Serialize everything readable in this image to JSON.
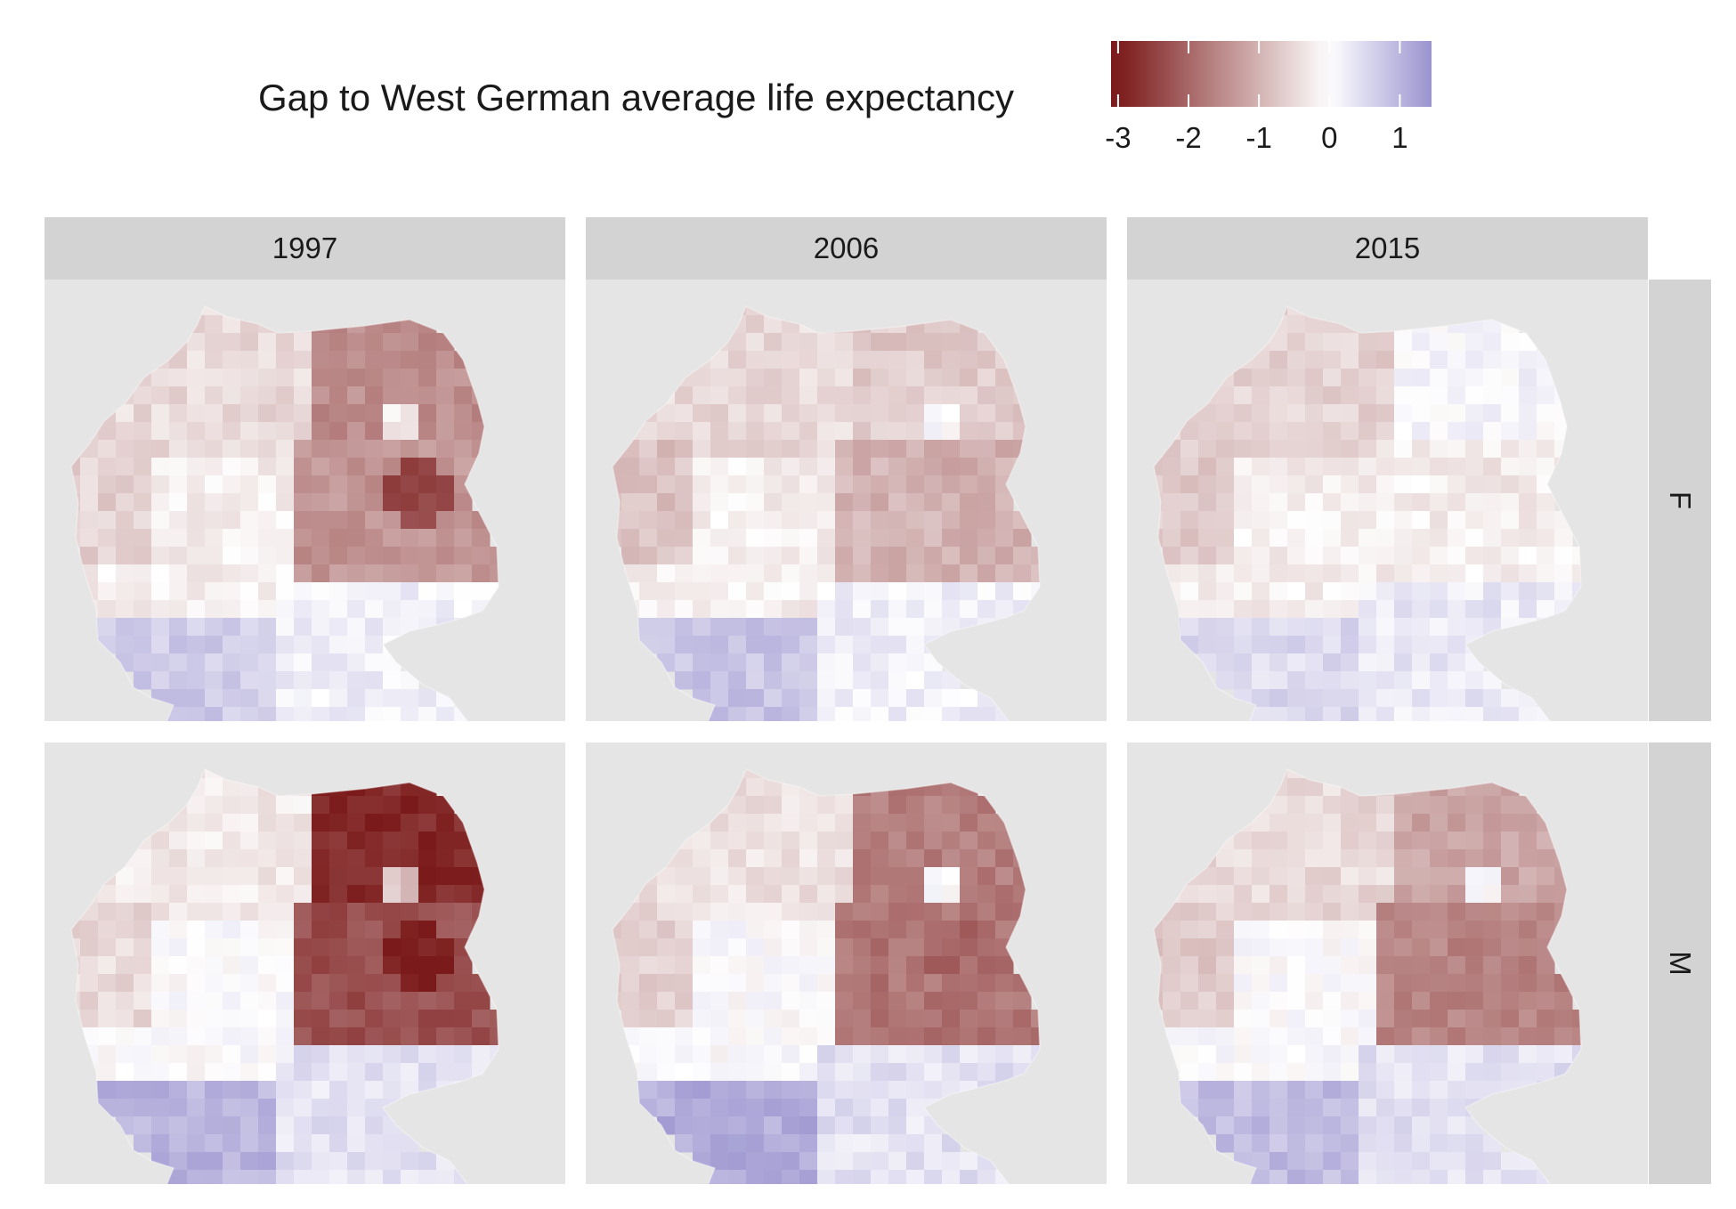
{
  "legend": {
    "title": "Gap to West German average life expectancy",
    "ticks": [
      {
        "value": -3,
        "label": "-3"
      },
      {
        "value": -2,
        "label": "-2"
      },
      {
        "value": -1,
        "label": "-1"
      },
      {
        "value": 0,
        "label": "0"
      },
      {
        "value": 1,
        "label": "1"
      }
    ],
    "range": [
      -3.1,
      1.45
    ],
    "colors": {
      "low": "#7b1a1a",
      "mid": "#ffffff",
      "high": "#9a93cf"
    }
  },
  "facets": {
    "columns": [
      "1997",
      "2006",
      "2015"
    ],
    "rows": [
      "F",
      "M"
    ]
  },
  "colors": {
    "panel_background": "#e5e5e5",
    "strip_background": "#d3d3d3"
  },
  "map_data": {
    "type": "choropleth",
    "region": "Germany (districts)",
    "variable": "gap_to_west_german_average_life_expectancy",
    "regional_estimates": [
      {
        "sex": "F",
        "year": "1997",
        "north_east": -1.5,
        "central_east": -1.4,
        "berlin": -0.2,
        "halle_hotspot": -2.4,
        "north_west": -0.5,
        "rhine_ruhr": -0.6,
        "central_west": -0.2,
        "south_west": 0.7,
        "south_east": 0.2
      },
      {
        "sex": "F",
        "year": "2006",
        "north_east": -0.7,
        "central_east": -1.0,
        "berlin": 0.0,
        "halle_hotspot": -1.1,
        "north_west": -0.5,
        "rhine_ruhr": -0.8,
        "central_west": -0.2,
        "south_west": 0.8,
        "south_east": 0.2
      },
      {
        "sex": "F",
        "year": "2015",
        "north_east": 0.1,
        "central_east": -0.2,
        "berlin": 0.1,
        "halle_hotspot": -0.3,
        "north_west": -0.6,
        "rhine_ruhr": -0.7,
        "central_west": -0.2,
        "south_west": 0.5,
        "south_east": 0.3
      },
      {
        "sex": "M",
        "year": "1997",
        "north_east": -2.8,
        "central_east": -2.3,
        "berlin": -0.8,
        "halle_hotspot": -3.0,
        "north_west": -0.3,
        "rhine_ruhr": -0.5,
        "central_west": 0.0,
        "south_west": 1.0,
        "south_east": 0.4
      },
      {
        "sex": "M",
        "year": "2006",
        "north_east": -1.7,
        "central_east": -1.8,
        "berlin": 0.0,
        "halle_hotspot": -2.0,
        "north_west": -0.4,
        "rhine_ruhr": -0.6,
        "central_west": 0.0,
        "south_west": 1.1,
        "south_east": 0.4
      },
      {
        "sex": "M",
        "year": "2015",
        "north_east": -1.2,
        "central_east": -1.6,
        "berlin": 0.0,
        "halle_hotspot": -1.7,
        "north_west": -0.5,
        "rhine_ruhr": -0.7,
        "central_west": 0.0,
        "south_west": 0.9,
        "south_east": 0.4
      }
    ]
  }
}
